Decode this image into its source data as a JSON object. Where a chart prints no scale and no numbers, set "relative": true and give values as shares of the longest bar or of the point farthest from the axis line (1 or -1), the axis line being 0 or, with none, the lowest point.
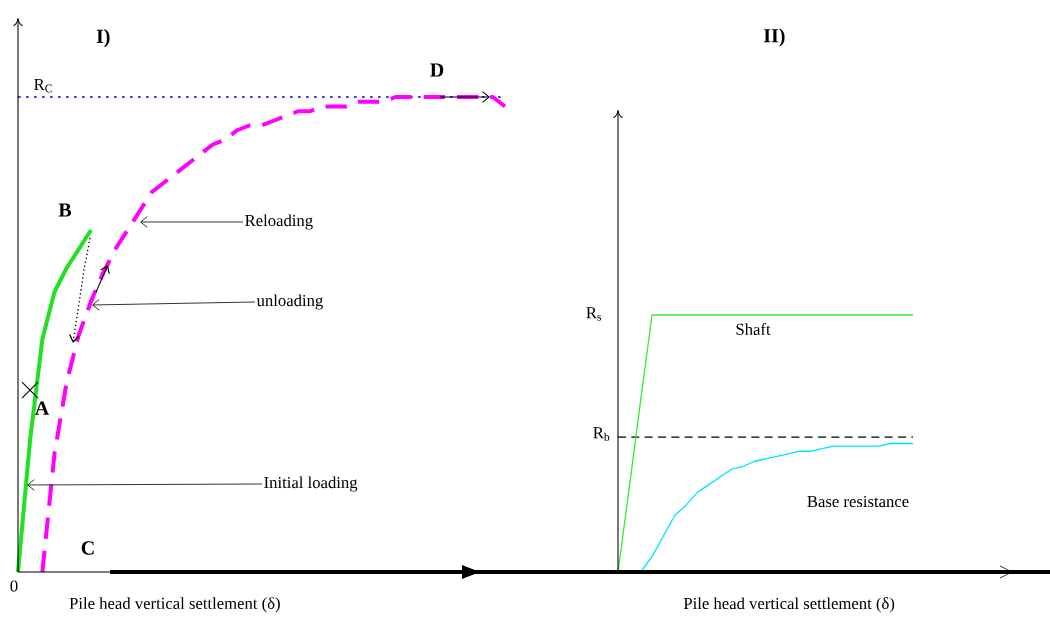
{
  "chart_data": [
    {
      "type": "line",
      "title": "I)",
      "xlabel": "Pile head vertical settlement (δ)",
      "relative": true,
      "categories": [
        null,
        null,
        null,
        null,
        null,
        null,
        null,
        null,
        null,
        null,
        null,
        null,
        null,
        null,
        null,
        null,
        null,
        null,
        null,
        null,
        null,
        null,
        null,
        null,
        null,
        null,
        null,
        null,
        null,
        null,
        null,
        null,
        null,
        null,
        null,
        null,
        null,
        null,
        null,
        null,
        null
      ],
      "series": [
        {
          "color": "#22e022",
          "values": [
            0,
            0.28,
            0.49,
            0.59,
            0.64,
            0.68,
            0.72,
            null,
            null,
            null,
            null,
            null,
            null,
            null,
            null,
            null,
            null,
            null,
            null,
            null,
            null,
            null,
            null,
            null,
            null,
            null,
            null,
            null,
            null,
            null,
            null,
            null,
            null,
            null,
            null,
            null,
            null,
            null,
            null,
            null,
            null
          ]
        },
        {
          "color": "#ff00ff",
          "line_style": "dashed",
          "values": [
            null,
            null,
            0,
            0.25,
            0.4,
            0.5,
            0.57,
            0.63,
            0.68,
            0.72,
            0.76,
            0.8,
            0.82,
            0.84,
            0.86,
            0.88,
            0.9,
            0.91,
            0.93,
            0.94,
            0.94,
            0.95,
            0.96,
            0.97,
            0.97,
            0.98,
            0.98,
            0.98,
            0.99,
            0.99,
            0.99,
            1,
            1,
            1,
            1,
            1,
            1,
            1,
            1,
            1,
            0.98
          ]
        }
      ],
      "ref_lines": [
        {
          "axis": "y",
          "value": 1,
          "label": "R$_{C}$",
          "color": "#0000ff",
          "line_style": "dotted"
        }
      ],
      "annotations": [
        {
          "text": "A",
          "y": 0.383
        },
        "B",
        "C",
        {
          "text": "D",
          "y": 1
        },
        "Reloading",
        "unloading",
        "Initial loading",
        "0"
      ]
    },
    {
      "type": "line",
      "title": "II)",
      "xlabel": "Pile head vertical settlement (δ)",
      "relative": true,
      "categories": [
        null,
        null,
        null,
        null,
        null,
        null,
        null,
        null,
        null,
        null,
        null,
        null,
        null,
        null,
        null,
        null,
        null,
        null,
        null,
        null,
        null,
        null,
        null,
        null,
        null,
        null,
        null
      ],
      "series": [
        {
          "name": "Shaft",
          "color": "#33ee33",
          "values": [
            0,
            0.33,
            0.67,
            1,
            1,
            1,
            1,
            1,
            1,
            1,
            1,
            1,
            1,
            1,
            1,
            1,
            1,
            1,
            1,
            1,
            1,
            1,
            1,
            1,
            1,
            1,
            1
          ]
        },
        {
          "name": "Base resistance",
          "color": "#00e5ff",
          "values": [
            null,
            null,
            0,
            0.06,
            0.14,
            0.22,
            0.26,
            0.31,
            0.34,
            0.37,
            0.4,
            0.41,
            0.43,
            0.44,
            0.45,
            0.46,
            0.47,
            0.47,
            0.48,
            0.49,
            0.49,
            0.49,
            0.49,
            0.49,
            0.5,
            0.5,
            0.5
          ]
        }
      ],
      "ref_lines": [
        {
          "axis": "y",
          "value": 0.525,
          "label": "R$_{b}$",
          "color": "#000000",
          "line_style": "dashed"
        }
      ],
      "annotations": [
        "R$_{s}$"
      ]
    }
  ]
}
